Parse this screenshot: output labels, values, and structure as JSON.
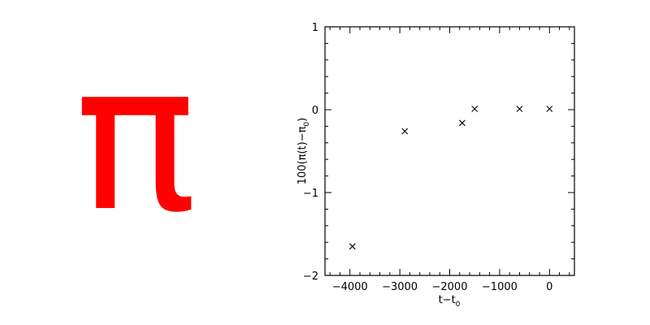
{
  "pi_symbol": {
    "glyph": "π",
    "color": "#ff0000"
  },
  "chart_data": {
    "type": "scatter",
    "title": "",
    "xlabel_main": "t−t",
    "xlabel_sub": "0",
    "ylabel_parts": [
      "100(π(t)−π",
      "0",
      ")"
    ],
    "xlim": [
      -4500,
      500
    ],
    "ylim": [
      -2,
      1
    ],
    "x_ticks": [
      -4000,
      -3000,
      -2000,
      -1000,
      0
    ],
    "x_tick_labels": [
      "−4000",
      "−3000",
      "−2000",
      "−1000",
      "0"
    ],
    "x_minor_step": 200,
    "y_ticks": [
      -2,
      -1,
      0,
      1
    ],
    "y_tick_labels": [
      "−2",
      "−1",
      "0",
      "1"
    ],
    "y_minor_step": 0.2,
    "marker": "x",
    "grid": false,
    "x": [
      -3950,
      -2900,
      -1750,
      -1500,
      -600,
      0
    ],
    "y": [
      -1.65,
      -0.26,
      -0.16,
      0.01,
      0.01,
      0.01
    ]
  }
}
